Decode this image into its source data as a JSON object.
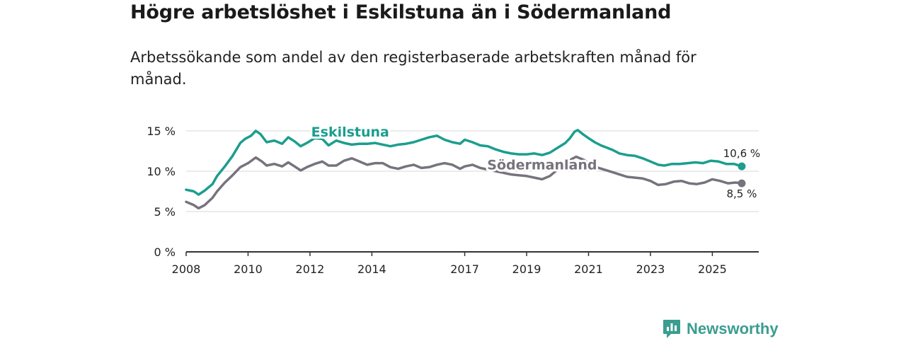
{
  "header": {
    "title": "Högre arbetslöshet i Eskilstuna än i Södermanland",
    "subtitle": "Arbetssökande som andel av den registerbaserade arbetskraften månad för månad."
  },
  "colors": {
    "eskilstuna": "#1b9e8e",
    "sodermanland": "#77737d",
    "grid": "#d7d7d7",
    "axis": "#333333",
    "text": "#222222"
  },
  "chart_data": {
    "type": "line",
    "title": "Högre arbetslöshet i Eskilstuna än i Södermanland",
    "subtitle": "Arbetssökande som andel av den registerbaserade arbetskraften månad för månad.",
    "xlabel": "",
    "ylabel": "",
    "xlim": [
      2008,
      2026.5
    ],
    "ylim": [
      0,
      15
    ],
    "grid": true,
    "y_ticks": [
      {
        "value": 0,
        "label": "0 %"
      },
      {
        "value": 5,
        "label": "5 %"
      },
      {
        "value": 10,
        "label": "10 %"
      },
      {
        "value": 15,
        "label": "15 %"
      }
    ],
    "x_ticks": [
      {
        "value": 2008,
        "label": "2008"
      },
      {
        "value": 2010,
        "label": "2010"
      },
      {
        "value": 2012,
        "label": "2012"
      },
      {
        "value": 2014,
        "label": "2014"
      },
      {
        "value": 2017,
        "label": "2017"
      },
      {
        "value": 2019,
        "label": "2019"
      },
      {
        "value": 2021,
        "label": "2021"
      },
      {
        "value": 2023,
        "label": "2023"
      },
      {
        "value": 2025,
        "label": "2025"
      }
    ],
    "series": [
      {
        "name": "Eskilstuna",
        "color_key": "eskilstuna",
        "end_label": "10,6 %",
        "points": [
          [
            2008.0,
            7.7
          ],
          [
            2008.25,
            7.5
          ],
          [
            2008.4,
            7.1
          ],
          [
            2008.6,
            7.6
          ],
          [
            2008.85,
            8.4
          ],
          [
            2009.0,
            9.4
          ],
          [
            2009.25,
            10.6
          ],
          [
            2009.5,
            11.9
          ],
          [
            2009.75,
            13.5
          ],
          [
            2009.9,
            14.0
          ],
          [
            2010.1,
            14.4
          ],
          [
            2010.25,
            15.0
          ],
          [
            2010.4,
            14.6
          ],
          [
            2010.6,
            13.6
          ],
          [
            2010.85,
            13.8
          ],
          [
            2011.1,
            13.4
          ],
          [
            2011.3,
            14.2
          ],
          [
            2011.5,
            13.7
          ],
          [
            2011.7,
            13.1
          ],
          [
            2011.9,
            13.5
          ],
          [
            2012.15,
            14.1
          ],
          [
            2012.4,
            14.0
          ],
          [
            2012.6,
            13.2
          ],
          [
            2012.85,
            13.8
          ],
          [
            2013.1,
            13.5
          ],
          [
            2013.35,
            13.3
          ],
          [
            2013.6,
            13.4
          ],
          [
            2013.85,
            13.4
          ],
          [
            2014.1,
            13.5
          ],
          [
            2014.35,
            13.3
          ],
          [
            2014.6,
            13.1
          ],
          [
            2014.85,
            13.3
          ],
          [
            2015.1,
            13.4
          ],
          [
            2015.35,
            13.6
          ],
          [
            2015.6,
            13.9
          ],
          [
            2015.85,
            14.2
          ],
          [
            2016.1,
            14.4
          ],
          [
            2016.35,
            13.9
          ],
          [
            2016.6,
            13.6
          ],
          [
            2016.85,
            13.4
          ],
          [
            2017.0,
            13.9
          ],
          [
            2017.25,
            13.6
          ],
          [
            2017.5,
            13.2
          ],
          [
            2017.75,
            13.1
          ],
          [
            2018.0,
            12.7
          ],
          [
            2018.25,
            12.4
          ],
          [
            2018.5,
            12.2
          ],
          [
            2018.75,
            12.1
          ],
          [
            2019.0,
            12.1
          ],
          [
            2019.25,
            12.2
          ],
          [
            2019.5,
            12.0
          ],
          [
            2019.75,
            12.3
          ],
          [
            2020.0,
            12.9
          ],
          [
            2020.25,
            13.5
          ],
          [
            2020.4,
            14.1
          ],
          [
            2020.55,
            14.9
          ],
          [
            2020.65,
            15.1
          ],
          [
            2020.85,
            14.5
          ],
          [
            2021.0,
            14.1
          ],
          [
            2021.2,
            13.6
          ],
          [
            2021.4,
            13.2
          ],
          [
            2021.6,
            12.9
          ],
          [
            2021.8,
            12.6
          ],
          [
            2022.0,
            12.2
          ],
          [
            2022.25,
            12.0
          ],
          [
            2022.5,
            11.9
          ],
          [
            2022.75,
            11.6
          ],
          [
            2023.0,
            11.2
          ],
          [
            2023.25,
            10.8
          ],
          [
            2023.45,
            10.7
          ],
          [
            2023.7,
            10.9
          ],
          [
            2023.95,
            10.9
          ],
          [
            2024.2,
            11.0
          ],
          [
            2024.45,
            11.1
          ],
          [
            2024.7,
            11.0
          ],
          [
            2024.95,
            11.3
          ],
          [
            2025.2,
            11.2
          ],
          [
            2025.45,
            10.9
          ],
          [
            2025.7,
            10.9
          ],
          [
            2025.95,
            10.6
          ]
        ]
      },
      {
        "name": "Södermanland",
        "color_key": "sodermanland",
        "end_label": "8,5 %",
        "points": [
          [
            2008.0,
            6.2
          ],
          [
            2008.25,
            5.8
          ],
          [
            2008.4,
            5.4
          ],
          [
            2008.6,
            5.8
          ],
          [
            2008.85,
            6.7
          ],
          [
            2009.0,
            7.5
          ],
          [
            2009.25,
            8.6
          ],
          [
            2009.5,
            9.5
          ],
          [
            2009.75,
            10.5
          ],
          [
            2010.0,
            11.0
          ],
          [
            2010.25,
            11.7
          ],
          [
            2010.45,
            11.2
          ],
          [
            2010.6,
            10.7
          ],
          [
            2010.85,
            10.9
          ],
          [
            2011.1,
            10.6
          ],
          [
            2011.3,
            11.1
          ],
          [
            2011.5,
            10.6
          ],
          [
            2011.7,
            10.1
          ],
          [
            2011.9,
            10.5
          ],
          [
            2012.15,
            10.9
          ],
          [
            2012.4,
            11.2
          ],
          [
            2012.6,
            10.7
          ],
          [
            2012.85,
            10.7
          ],
          [
            2013.1,
            11.3
          ],
          [
            2013.35,
            11.6
          ],
          [
            2013.6,
            11.2
          ],
          [
            2013.85,
            10.8
          ],
          [
            2014.1,
            11.0
          ],
          [
            2014.35,
            11.0
          ],
          [
            2014.6,
            10.5
          ],
          [
            2014.85,
            10.3
          ],
          [
            2015.1,
            10.6
          ],
          [
            2015.35,
            10.8
          ],
          [
            2015.6,
            10.4
          ],
          [
            2015.85,
            10.5
          ],
          [
            2016.1,
            10.8
          ],
          [
            2016.35,
            11.0
          ],
          [
            2016.6,
            10.8
          ],
          [
            2016.85,
            10.3
          ],
          [
            2017.0,
            10.6
          ],
          [
            2017.25,
            10.8
          ],
          [
            2017.5,
            10.4
          ],
          [
            2017.75,
            10.2
          ],
          [
            2018.0,
            10.0
          ],
          [
            2018.25,
            9.8
          ],
          [
            2018.5,
            9.6
          ],
          [
            2018.75,
            9.5
          ],
          [
            2019.0,
            9.4
          ],
          [
            2019.25,
            9.2
          ],
          [
            2019.5,
            9.0
          ],
          [
            2019.75,
            9.4
          ],
          [
            2020.0,
            10.2
          ],
          [
            2020.25,
            10.8
          ],
          [
            2020.45,
            11.5
          ],
          [
            2020.6,
            11.8
          ],
          [
            2020.85,
            11.4
          ],
          [
            2021.0,
            11.0
          ],
          [
            2021.25,
            10.5
          ],
          [
            2021.5,
            10.2
          ],
          [
            2021.75,
            9.9
          ],
          [
            2022.0,
            9.6
          ],
          [
            2022.25,
            9.3
          ],
          [
            2022.5,
            9.2
          ],
          [
            2022.75,
            9.1
          ],
          [
            2023.0,
            8.8
          ],
          [
            2023.25,
            8.3
          ],
          [
            2023.5,
            8.4
          ],
          [
            2023.75,
            8.7
          ],
          [
            2024.0,
            8.8
          ],
          [
            2024.25,
            8.5
          ],
          [
            2024.5,
            8.4
          ],
          [
            2024.75,
            8.6
          ],
          [
            2025.0,
            9.0
          ],
          [
            2025.25,
            8.8
          ],
          [
            2025.5,
            8.5
          ],
          [
            2025.75,
            8.6
          ],
          [
            2025.95,
            8.5
          ]
        ]
      }
    ],
    "annotations": [
      {
        "text": "Eskilstuna",
        "series": "Eskilstuna"
      },
      {
        "text": "Södermanland",
        "series": "Södermanland"
      }
    ]
  },
  "footer": {
    "brand": "Newsworthy",
    "logo_icon": "bar-chart-speech-bubble-icon"
  }
}
